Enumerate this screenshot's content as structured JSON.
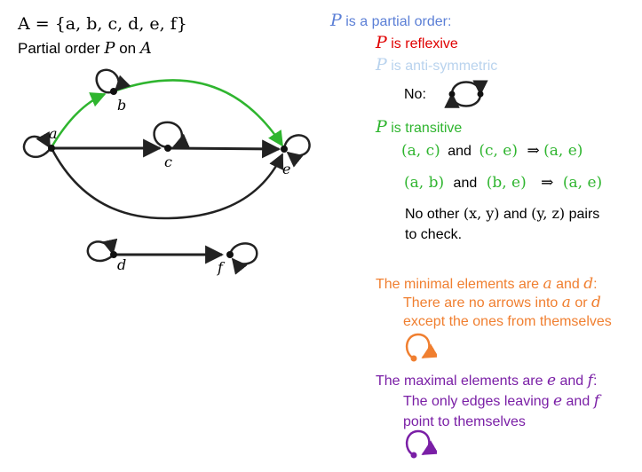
{
  "left": {
    "set_def": "A = {a, b, c, d, e, f}",
    "subtitle_prefix": "Partial order",
    "subtitle_P": "P",
    "subtitle_mid": "on",
    "subtitle_A": "A"
  },
  "graph": {
    "nodes": {
      "a": "a",
      "b": "b",
      "c": "c",
      "d": "d",
      "e": "e",
      "f": "f"
    }
  },
  "right": {
    "partial_order": {
      "P": "P",
      "text": "is a partial order:"
    },
    "reflexive": {
      "P": "P",
      "text": "is reflexive"
    },
    "antisym": {
      "P": "P",
      "text": "is anti-symmetric"
    },
    "no_label": "No:",
    "transitive": {
      "P": "P",
      "text": "is transitive"
    },
    "line1": {
      "p1": "(a, c)",
      "and": "and",
      "p2": "(c, e)",
      "implies": "⇒",
      "p3": "(a, e)"
    },
    "line2": {
      "p1": "(a, b)",
      "and": "and",
      "p2": "(b, e)",
      "implies": "⇒",
      "p3": "(a, e)"
    },
    "no_other": {
      "pre": "No other",
      "xy": "(x, y)",
      "and": "and",
      "yz": "(y, z)",
      "post": "pairs",
      "line2": "to check."
    },
    "minimal": {
      "pre": "The minimal elements are",
      "a": "a",
      "and": "and",
      "d": "d",
      "colon": ":",
      "l2_pre": "There are no arrows into",
      "l2_a": "a",
      "l2_or": "or",
      "l2_d": "d",
      "l3": "except the ones from themselves"
    },
    "maximal": {
      "pre": "The maximal elements are",
      "e": "e",
      "and": "and",
      "f": "f",
      "colon": ":",
      "l2_pre": "The only edges leaving",
      "l2_e": "e",
      "l2_and": "and",
      "l2_f": "f",
      "l3": "point to themselves"
    }
  },
  "colors": {
    "blue": "#5b7fd6",
    "red": "#e00000",
    "light_blue": "#b9d3ee",
    "green": "#2fb52f",
    "orange": "#f07f30",
    "purple": "#7a1fa6",
    "edge": "#222222"
  }
}
